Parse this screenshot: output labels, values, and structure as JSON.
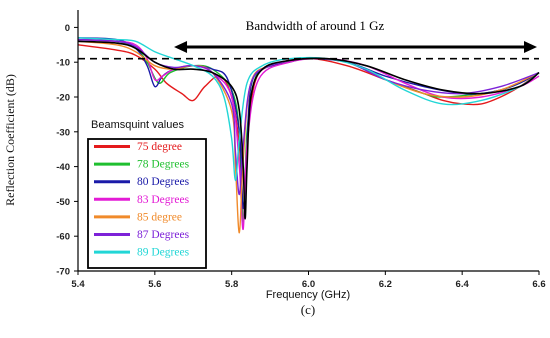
{
  "chart_data": {
    "type": "line",
    "xlabel": "Frequency (GHz)",
    "ylabel": "Reflection Coefficient (dB)",
    "caption": "(c)",
    "annotation": "Bandwidth of around 1 Gz",
    "xlim": [
      5.4,
      6.6
    ],
    "ylim": [
      -70,
      5
    ],
    "x_ticks": [
      "5.4",
      "5.6",
      "5.8",
      "6.0",
      "6.2",
      "6.4",
      "6.6"
    ],
    "y_ticks": [
      "0",
      "-10",
      "-20",
      "-30",
      "-40",
      "-50",
      "-60",
      "-70"
    ],
    "threshold_db": -9,
    "bandwidth_range_ghz": [
      5.65,
      6.6
    ],
    "grid": false,
    "legend_title": "Beamsquint values",
    "legend_position": "lower-left",
    "series": [
      {
        "name": "75 degree",
        "color": "#e41a1c",
        "x": [
          5.4,
          5.5,
          5.55,
          5.6,
          5.63,
          5.67,
          5.7,
          5.73,
          5.77,
          5.8,
          5.82,
          5.83,
          5.84,
          5.86,
          5.9,
          6.0,
          6.1,
          6.2,
          6.3,
          6.35,
          6.4,
          6.45,
          6.5,
          6.55,
          6.6
        ],
        "y": [
          -5,
          -6.5,
          -8,
          -12,
          -16,
          -19,
          -21,
          -17,
          -14,
          -20,
          -34,
          -52,
          -34,
          -16,
          -11,
          -9,
          -11,
          -15,
          -19,
          -21,
          -22,
          -22,
          -20,
          -17,
          -13
        ]
      },
      {
        "name": "78 Degrees",
        "color": "#1fbf2f",
        "x": [
          5.4,
          5.5,
          5.55,
          5.58,
          5.61,
          5.64,
          5.7,
          5.75,
          5.8,
          5.82,
          5.83,
          5.84,
          5.86,
          5.9,
          6.0,
          6.1,
          6.2,
          6.3,
          6.35,
          6.45,
          6.5,
          6.55,
          6.6
        ],
        "y": [
          -3.5,
          -4,
          -6,
          -10,
          -16,
          -13,
          -11,
          -12,
          -18,
          -30,
          -56,
          -30,
          -15,
          -11,
          -9,
          -10,
          -15,
          -19,
          -20,
          -19,
          -18,
          -16,
          -13
        ]
      },
      {
        "name": "80 Degrees",
        "color": "#1a1aa8",
        "x": [
          5.4,
          5.5,
          5.55,
          5.58,
          5.6,
          5.62,
          5.65,
          5.7,
          5.75,
          5.79,
          5.82,
          5.83,
          5.84,
          5.85,
          5.88,
          5.95,
          6.0,
          6.1,
          6.2,
          6.3,
          6.4,
          6.45,
          6.5,
          6.55,
          6.6
        ],
        "y": [
          -3,
          -3.5,
          -6,
          -11,
          -17,
          -14,
          -12,
          -11,
          -12,
          -15,
          -30,
          -52,
          -34,
          -17,
          -12,
          -10,
          -9,
          -10,
          -14,
          -17,
          -19,
          -19,
          -18,
          -16,
          -13
        ]
      },
      {
        "name": "83 Degrees",
        "color": "#e31bd5",
        "x": [
          5.4,
          5.5,
          5.55,
          5.58,
          5.6,
          5.62,
          5.65,
          5.7,
          5.75,
          5.8,
          5.82,
          5.83,
          5.84,
          5.87,
          5.95,
          6.05,
          6.15,
          6.25,
          6.35,
          6.45,
          6.55,
          6.6
        ],
        "y": [
          -3.5,
          -4,
          -5,
          -9,
          -15,
          -14,
          -12,
          -11,
          -13,
          -20,
          -40,
          -58,
          -34,
          -15,
          -10,
          -9,
          -11,
          -16,
          -20,
          -20,
          -17,
          -14
        ]
      },
      {
        "name": "85 degree",
        "color": "#f08a2a",
        "x": [
          5.4,
          5.5,
          5.55,
          5.6,
          5.65,
          5.7,
          5.75,
          5.8,
          5.81,
          5.82,
          5.83,
          5.85,
          5.9,
          6.0,
          6.1,
          6.2,
          6.3,
          6.4,
          6.5,
          6.6
        ],
        "y": [
          -4,
          -5,
          -7,
          -11,
          -12,
          -11,
          -13,
          -24,
          -40,
          -59,
          -38,
          -16,
          -11,
          -9,
          -10,
          -15,
          -19,
          -20,
          -18,
          -13
        ]
      },
      {
        "name": "87 Degrees",
        "color": "#7d22d8",
        "x": [
          5.4,
          5.5,
          5.55,
          5.6,
          5.65,
          5.7,
          5.75,
          5.8,
          5.81,
          5.82,
          5.83,
          5.85,
          5.9,
          6.0,
          6.1,
          6.2,
          6.3,
          6.4,
          6.5,
          6.6
        ],
        "y": [
          -3.5,
          -4,
          -5.5,
          -10,
          -11.5,
          -11,
          -13,
          -22,
          -36,
          -48,
          -34,
          -16,
          -11,
          -9,
          -10,
          -15,
          -18,
          -19,
          -17,
          -13
        ]
      },
      {
        "name": "89 Degrees",
        "color": "#22d6d6",
        "x": [
          5.4,
          5.5,
          5.55,
          5.6,
          5.65,
          5.7,
          5.75,
          5.78,
          5.8,
          5.81,
          5.82,
          5.84,
          5.88,
          5.95,
          6.05,
          6.15,
          6.25,
          6.35,
          6.45,
          6.55,
          6.6
        ],
        "y": [
          -3,
          -3.5,
          -4,
          -7,
          -9,
          -11,
          -14,
          -20,
          -32,
          -44,
          -32,
          -16,
          -11,
          -9,
          -9,
          -12,
          -18,
          -22,
          -21,
          -17,
          -13
        ]
      },
      {
        "name": "",
        "color": "#000000",
        "x": [
          5.4,
          5.5,
          5.55,
          5.6,
          5.65,
          5.7,
          5.75,
          5.8,
          5.82,
          5.83,
          5.835,
          5.84,
          5.85,
          5.88,
          5.95,
          6.05,
          6.15,
          6.25,
          6.35,
          6.45,
          6.55,
          6.6
        ],
        "y": [
          -4,
          -4.5,
          -6,
          -10,
          -12,
          -12,
          -13,
          -17,
          -24,
          -40,
          -55,
          -40,
          -20,
          -12,
          -9.5,
          -9,
          -11,
          -15,
          -18,
          -19,
          -17,
          -13
        ]
      }
    ]
  }
}
